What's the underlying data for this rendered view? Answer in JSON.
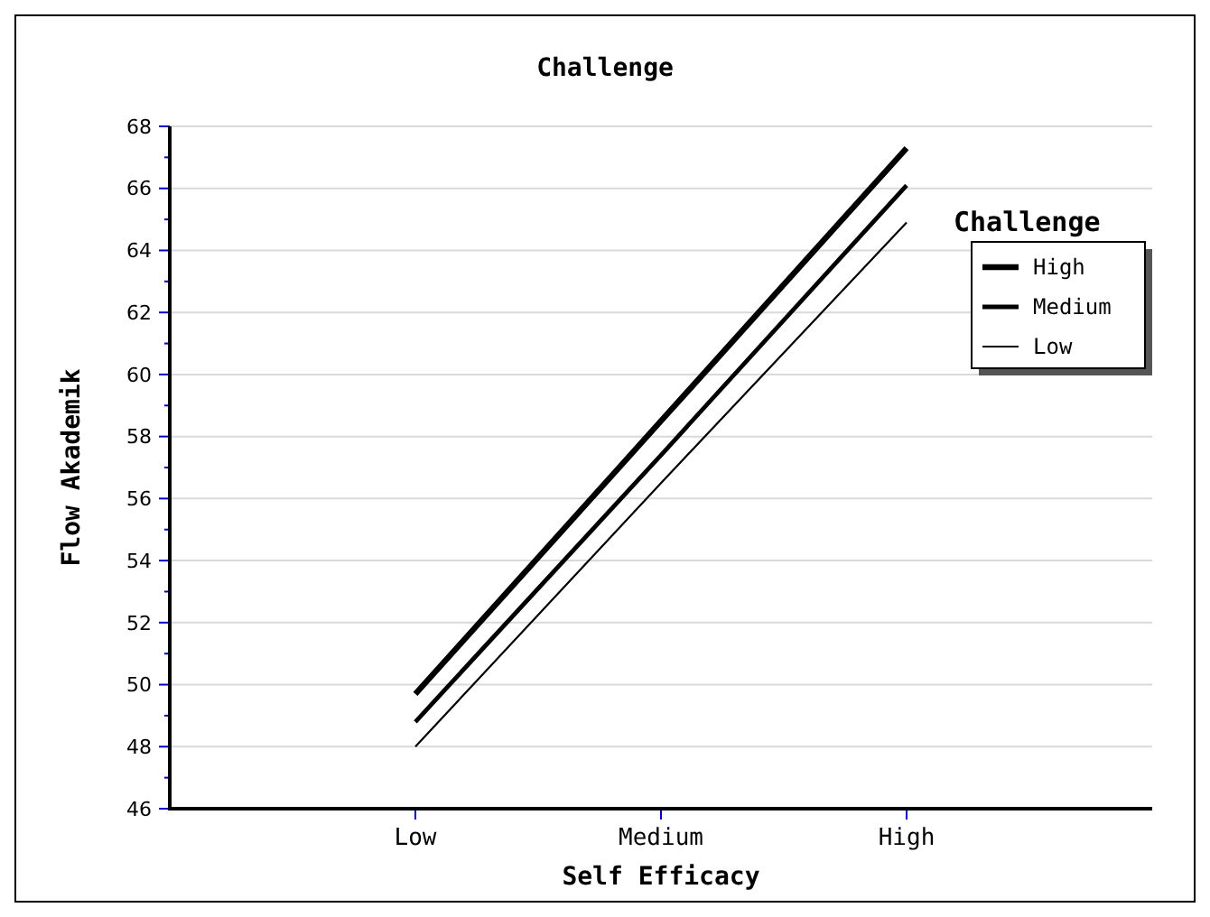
{
  "chart_data": {
    "type": "line",
    "title": "Challenge",
    "xlabel": "Self Efficacy",
    "ylabel": "Flow Akademik",
    "legend_title": "Challenge",
    "categories": [
      "Low",
      "Medium",
      "High"
    ],
    "series": [
      {
        "name": "High",
        "color": "#000000",
        "values": [
          49.7,
          58.5,
          67.3
        ]
      },
      {
        "name": "Medium",
        "color": "#000000",
        "values": [
          48.8,
          57.4,
          66.1
        ]
      },
      {
        "name": "Low",
        "color": "#000000",
        "values": [
          48.0,
          56.5,
          64.9
        ]
      }
    ],
    "ylim": [
      46,
      68
    ],
    "yticks": [
      46,
      {
        "value": 47,
        "label": null
      },
      48,
      {
        "value": 49,
        "label": null
      },
      50,
      {
        "value": 51,
        "label": null
      },
      52,
      {
        "value": 53,
        "label": null
      },
      54,
      {
        "value": 55,
        "label": null
      },
      56,
      {
        "value": 57,
        "label": null
      },
      58,
      {
        "value": 59,
        "label": null
      },
      60,
      {
        "value": 61,
        "label": null
      },
      62,
      {
        "value": 63,
        "label": null
      },
      64,
      {
        "value": 65,
        "label": null
      },
      66,
      {
        "value": 67,
        "label": null
      },
      68
    ],
    "grid": "y",
    "legend": "top right",
    "marker": "none",
    "line_style": "solid"
  }
}
